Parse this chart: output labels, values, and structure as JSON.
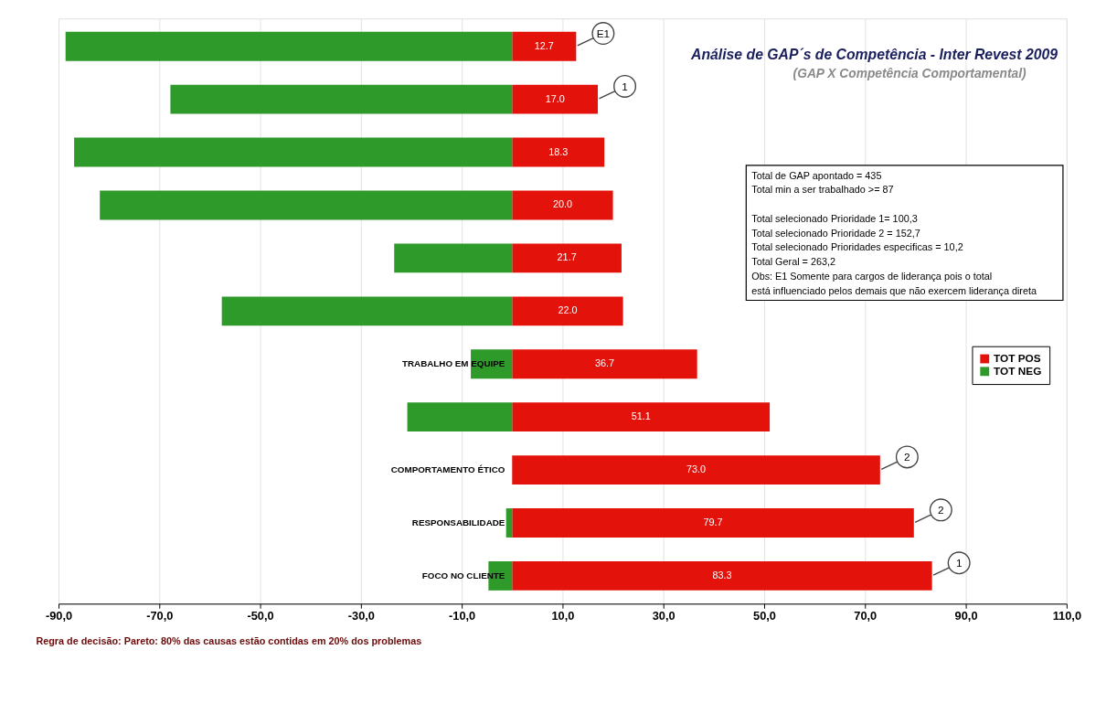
{
  "chart_data": {
    "type": "bar",
    "orientation": "horizontal",
    "stacked": true,
    "title": "Análise de GAP´s de Competência - Inter Revest 2009",
    "subtitle": "(GAP X Competência Comportamental)",
    "categories": [
      null,
      null,
      null,
      null,
      null,
      null,
      "TRABALHO EM EQUIPE",
      null,
      "COMPORTAMENTO ÉTICO",
      "RESPONSABILIDADE",
      "FOCO NO CLIENTE"
    ],
    "series": [
      {
        "name": "TOT POS",
        "color": "#e3120b",
        "values": [
          12.7,
          17.0,
          18.3,
          20.0,
          21.7,
          22.0,
          36.7,
          51.1,
          73.0,
          79.7,
          83.3
        ],
        "value_labels": [
          "12.7",
          "17.0",
          "18.3",
          "20.0",
          "21.7",
          "22.0",
          "36.7",
          "51.1",
          "73.0",
          "79.7",
          "83.3"
        ]
      },
      {
        "name": "TOT NEG",
        "color": "#2e9a2a",
        "values": [
          -88.6,
          -67.8,
          -86.9,
          -81.8,
          -23.4,
          -57.6,
          -8.2,
          -20.8,
          0,
          -1.2,
          -4.7
        ]
      }
    ],
    "xlim": [
      -90,
      110
    ],
    "xticks": [
      {
        "value": -90,
        "label": "-90,0"
      },
      {
        "value": -70,
        "label": "-70,0"
      },
      {
        "value": -50,
        "label": "-50,0"
      },
      {
        "value": -30,
        "label": "-30,0"
      },
      {
        "value": -10,
        "label": "-10,0"
      },
      {
        "value": 10,
        "label": "10,0"
      },
      {
        "value": 30,
        "label": "30,0"
      },
      {
        "value": 50,
        "label": "50,0"
      },
      {
        "value": 70,
        "label": "70,0"
      },
      {
        "value": 90,
        "label": "90,0"
      },
      {
        "value": 110,
        "label": "110,0"
      }
    ],
    "grid": "x",
    "legend": "right",
    "annotations": [
      {
        "text": "E1",
        "x": 12.7
      },
      {
        "text": "1",
        "x": 17.0
      },
      {
        "text": "2",
        "x": 73.0,
        "y": "COMPORTAMENTO ÉTICO"
      },
      {
        "text": "2",
        "x": 79.7,
        "y": "RESPONSABILIDADE"
      },
      {
        "text": "1",
        "x": 83.3,
        "y": "FOCO NO CLIENTE"
      },
      "Total de GAP apontado = 435",
      "Total min a ser trabalhado >= 87",
      "Total selecionado Prioridade 1= 100,3",
      "Total selecionado Prioridade 2 = 152,7",
      "Total selecionado Prioridades especificas = 10,2",
      "Total Geral = 263,2",
      "Obs: E1 Somente para cargos de liderança pois o total está influenciado pelos demais que não exercem liderança direta",
      "Regra de decisão:  Pareto: 80% das causas estão contidas em 20% dos problemas"
    ]
  }
}
